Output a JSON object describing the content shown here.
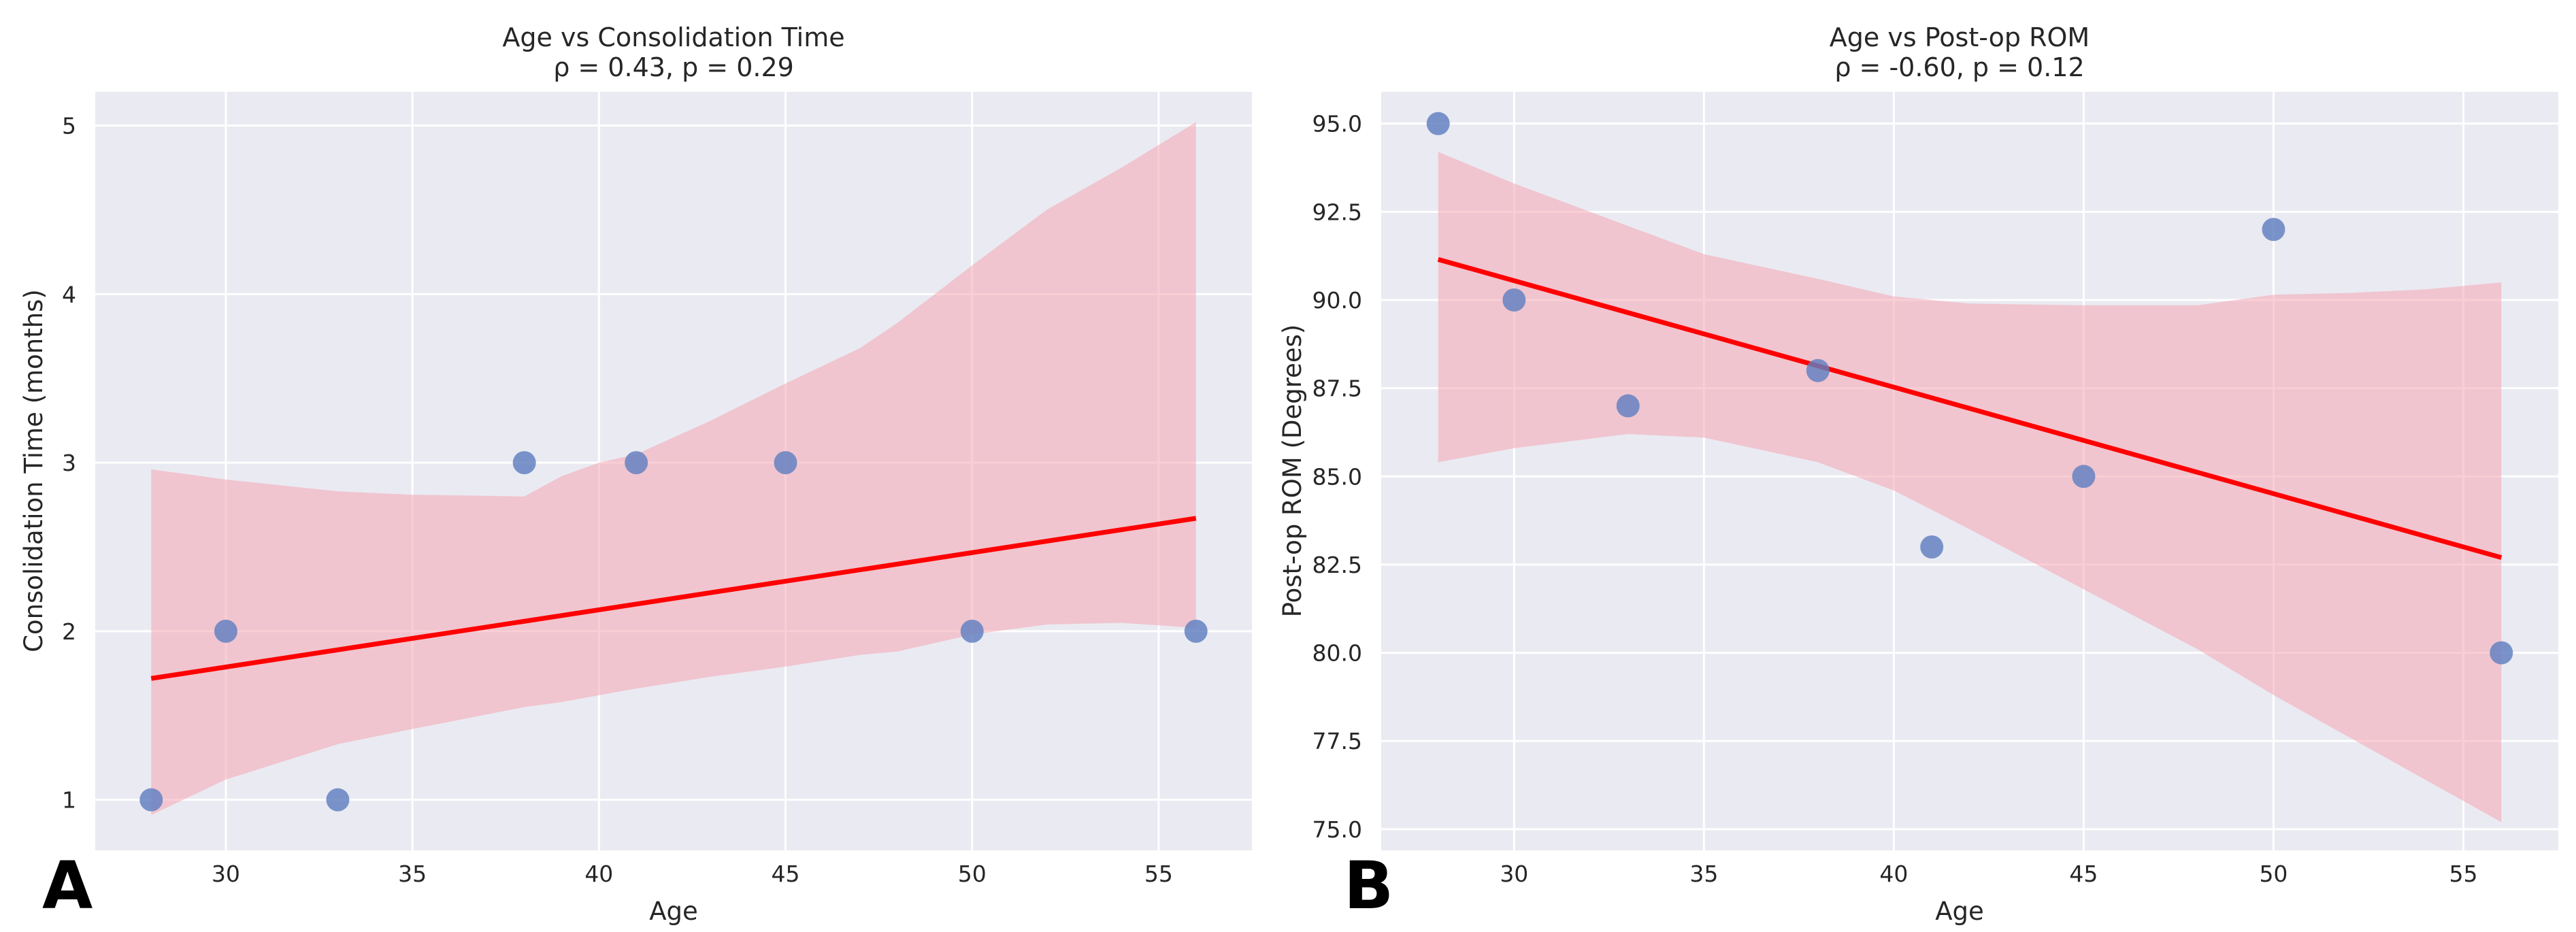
{
  "figure": {
    "panel_labels": [
      "A",
      "B"
    ]
  },
  "colors": {
    "plot_bg": "#eaeaf2",
    "point": "#5f7fbf",
    "ci_band": "#f4a6b2",
    "reg_line": "#ff0000"
  },
  "chart_data": [
    {
      "type": "scatter",
      "panel": "A",
      "title": "Age vs Consolidation Time",
      "subtitle": "ρ = 0.43, p = 0.29",
      "xlabel": "Age",
      "ylabel": "Consolidation Time (months)",
      "xlim": [
        26.5,
        57.5
      ],
      "ylim": [
        0.7,
        5.2
      ],
      "xticks": [
        30,
        35,
        40,
        45,
        50,
        55
      ],
      "yticks": [
        1,
        2,
        3,
        4,
        5
      ],
      "x": [
        28,
        30,
        33,
        38,
        41,
        45,
        50,
        56
      ],
      "y": [
        1,
        2,
        1,
        3,
        3,
        3,
        2,
        2
      ],
      "regression": {
        "x": [
          28,
          56
        ],
        "y": [
          1.72,
          2.67
        ]
      },
      "ci_band": {
        "x": [
          28,
          30,
          33,
          35,
          38,
          39,
          40,
          41,
          43,
          45,
          47,
          48,
          50,
          52,
          54,
          56
        ],
        "upper": [
          2.96,
          2.9,
          2.83,
          2.81,
          2.8,
          2.92,
          3.0,
          3.05,
          3.25,
          3.47,
          3.68,
          3.83,
          4.17,
          4.5,
          4.75,
          5.02
        ],
        "lower": [
          0.91,
          1.12,
          1.33,
          1.42,
          1.55,
          1.58,
          1.62,
          1.66,
          1.73,
          1.79,
          1.86,
          1.88,
          1.98,
          2.04,
          2.05,
          2.02
        ]
      }
    },
    {
      "type": "scatter",
      "panel": "B",
      "title": "Age vs Post-op ROM",
      "subtitle": "ρ = -0.60, p = 0.12",
      "xlabel": "Age",
      "ylabel": "Post-op ROM (Degrees)",
      "xlim": [
        26.5,
        57.5
      ],
      "ylim": [
        74.4,
        95.9
      ],
      "xticks": [
        30,
        35,
        40,
        45,
        50,
        55
      ],
      "yticks": [
        75.0,
        77.5,
        80.0,
        82.5,
        85.0,
        87.5,
        90.0,
        92.5,
        95.0
      ],
      "ytick_labels": [
        "75.0",
        "77.5",
        "80.0",
        "82.5",
        "85.0",
        "87.5",
        "90.0",
        "92.5",
        "95.0"
      ],
      "x": [
        28,
        30,
        33,
        38,
        41,
        45,
        50,
        56
      ],
      "y": [
        95,
        90,
        87,
        88,
        83,
        85,
        92,
        80
      ],
      "regression": {
        "x": [
          28,
          56
        ],
        "y": [
          91.15,
          82.7
        ]
      },
      "ci_band": {
        "x": [
          28,
          30,
          33,
          35,
          38,
          40,
          42,
          45,
          48,
          50,
          52,
          54,
          56
        ],
        "upper": [
          94.2,
          93.3,
          92.1,
          91.3,
          90.6,
          90.1,
          89.9,
          89.85,
          89.85,
          90.15,
          90.2,
          90.3,
          90.5
        ],
        "lower": [
          85.4,
          85.8,
          86.2,
          86.1,
          85.4,
          84.6,
          83.5,
          81.8,
          80.1,
          78.8,
          77.6,
          76.4,
          75.2
        ]
      }
    }
  ]
}
